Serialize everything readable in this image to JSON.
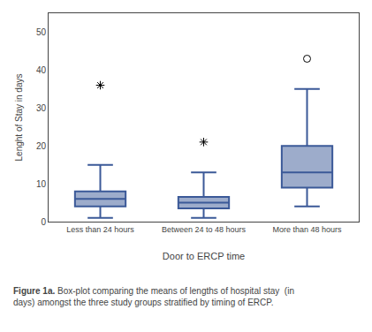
{
  "chart_data": {
    "type": "box",
    "xlabel": "Door to ERCP time",
    "ylabel": "Lenght of Stay in days",
    "annotations": [
      "Figure 1a.",
      "Box-plot comparing the means of lengths of hospital stay  (in days) amongst the three study groups stratified by timing of ERCP."
    ],
    "categories": [
      "Less than 24 hours",
      "Between 24 to 48 hours",
      "More than 48 hours"
    ],
    "q1": [
      4.0,
      3.5,
      9.0
    ],
    "median": [
      6.0,
      5.0,
      13.0
    ],
    "q3": [
      8.0,
      6.5,
      20.0
    ],
    "whisker_low": [
      1.0,
      1.0,
      4.0
    ],
    "whisker_high": [
      15.0,
      13.0,
      35.0
    ],
    "outliers": [
      {
        "marker": "asterisk",
        "values": [
          [
            36.0
          ],
          [
            21.0
          ],
          []
        ]
      },
      {
        "marker": "circle",
        "values": [
          [],
          [],
          [
            43.0
          ]
        ]
      }
    ],
    "color": "#3B5998",
    "ylim": [
      0,
      55
    ],
    "yticks": [
      0,
      10,
      20,
      30,
      40,
      50
    ],
    "grid": false
  }
}
